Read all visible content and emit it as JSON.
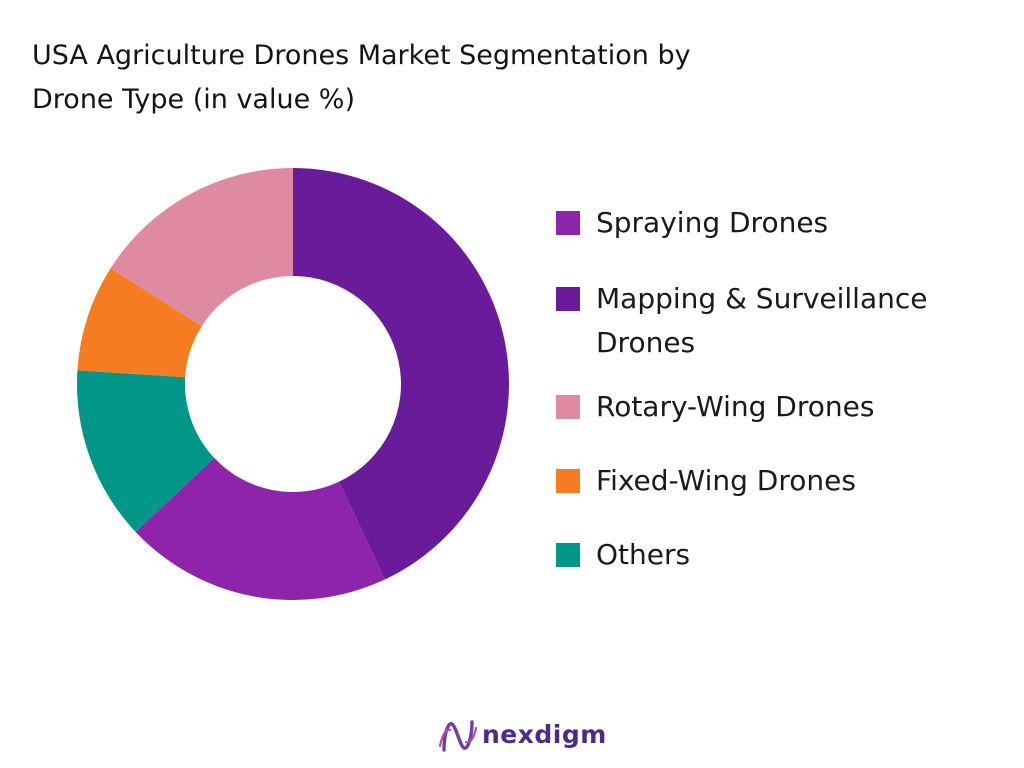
{
  "chart_data": {
    "type": "pie",
    "title_lines": [
      "USA Agriculture Drones Market Segmentation by",
      "Drone Type (in value %)"
    ],
    "categories": [
      "Spraying Drones",
      "Mapping & Surveillance Drones",
      "Rotary-Wing Drones",
      "Fixed-Wing Drones",
      "Others"
    ],
    "legend_lines": [
      [
        "Spraying Drones"
      ],
      [
        "Mapping & Surveillance",
        "Drones"
      ],
      [
        "Rotary-Wing Drones"
      ],
      [
        "Fixed-Wing Drones"
      ],
      [
        "Others"
      ]
    ],
    "values": [
      20,
      43,
      16,
      8,
      13
    ],
    "colors": [
      "#8E24AA",
      "#6A1B9A",
      "#DE8AA0",
      "#F57C20",
      "#009688"
    ],
    "donut": true,
    "start_category": "Mapping & Surveillance Drones",
    "legend_position": "right"
  },
  "brand": {
    "name": "nexdigm",
    "logo_icon": "nexdigm-logo-icon",
    "color": "#4a2a8a"
  }
}
